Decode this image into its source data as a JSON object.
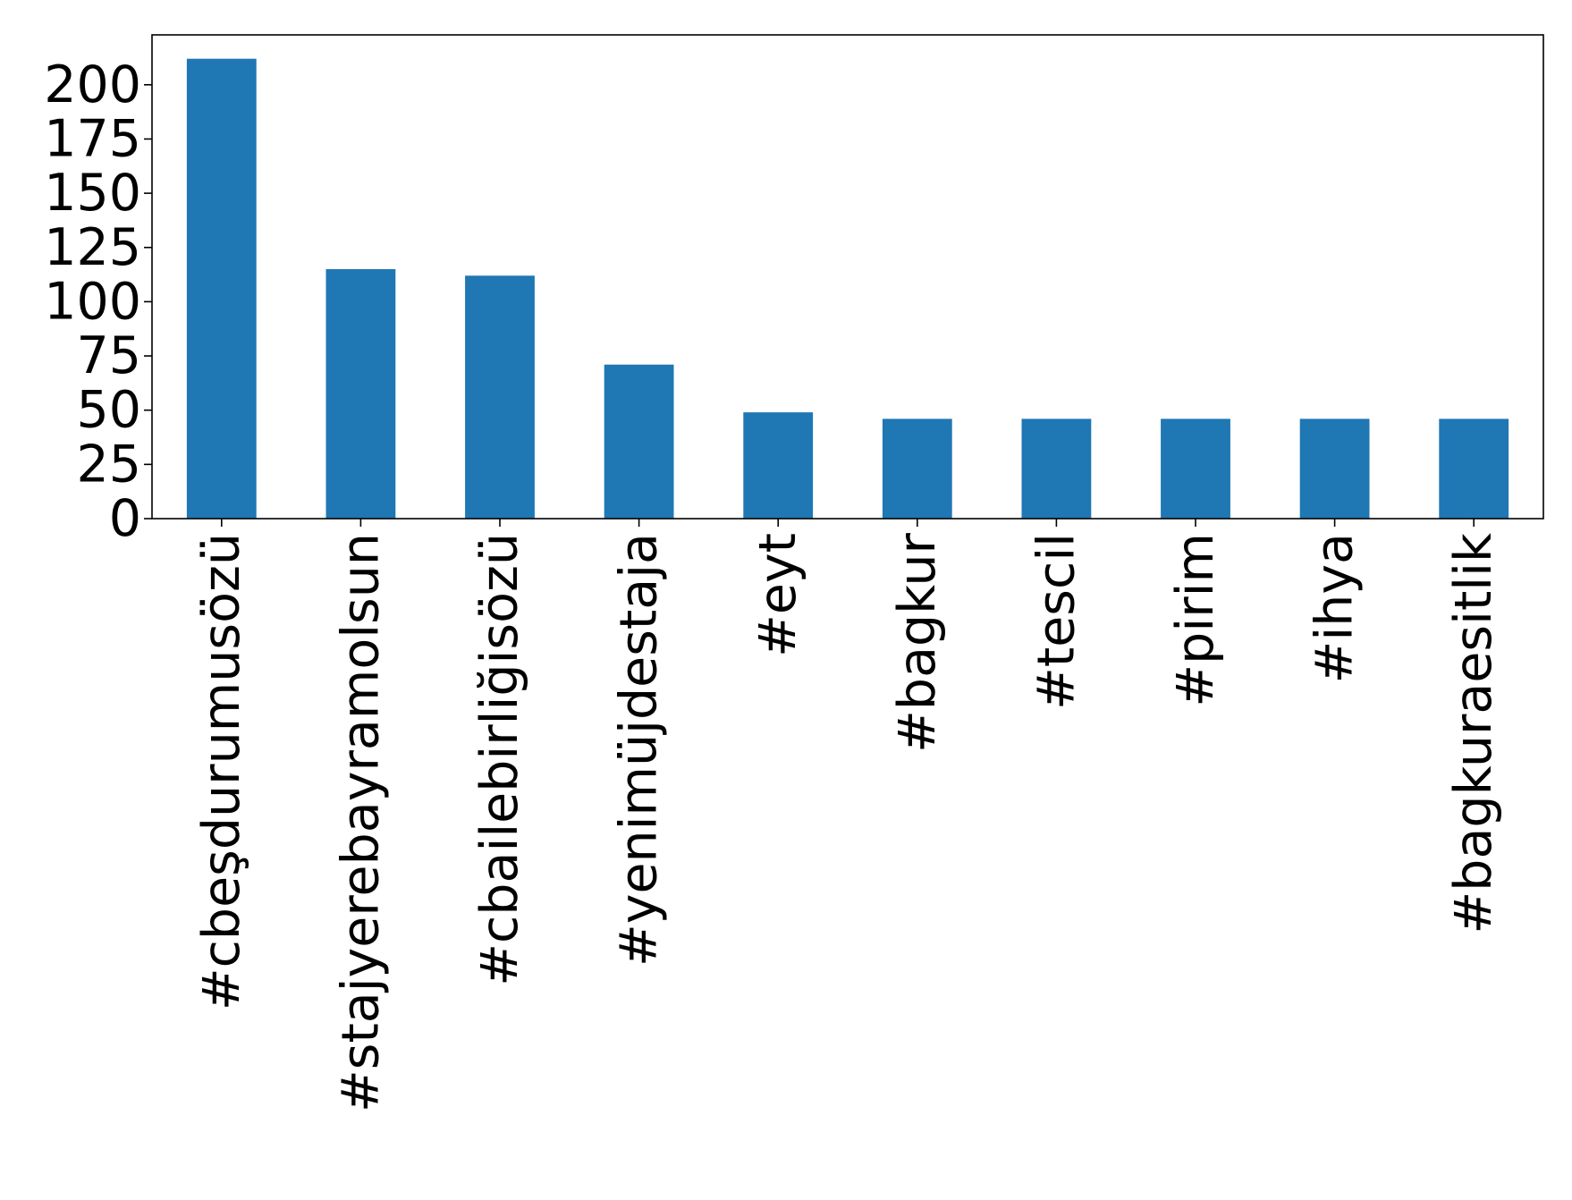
{
  "chart_data": {
    "type": "bar",
    "title": "",
    "xlabel": "",
    "ylabel": "",
    "categories": [
      "#cbeşdurumusözü",
      "#stajyerebayramolsun",
      "#cbailebirliğisözü",
      "#yenimüjdestaja",
      "#eyt",
      "#bagkur",
      "#tescil",
      "#pirim",
      "#ihya",
      "#bagkuraesitlik"
    ],
    "values": [
      212,
      115,
      112,
      71,
      49,
      46,
      46,
      46,
      46,
      46
    ],
    "ylim": [
      0,
      223
    ],
    "yticks": [
      0,
      25,
      50,
      75,
      100,
      125,
      150,
      175,
      200
    ],
    "grid": false,
    "legend": "none",
    "colors": {
      "bar": "#1f77b4",
      "axes": "#000000",
      "background": "#ffffff"
    }
  }
}
